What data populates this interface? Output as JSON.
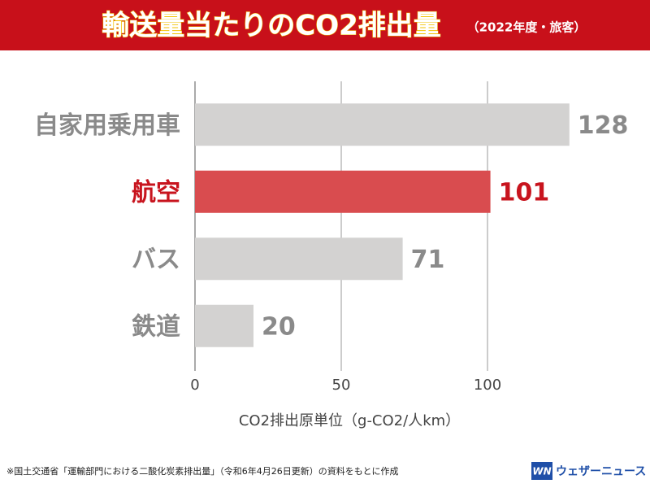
{
  "chart_data": {
    "type": "hbar",
    "title": "輸送量当たりのCO2排出量",
    "subtitle": "（2022年度・旅客）",
    "categories": [
      "自家用乗用車",
      "航空",
      "バス",
      "鉄道"
    ],
    "values": [
      128,
      101,
      71,
      20
    ],
    "colors": [
      "#d3d2d1",
      "#d94c4f",
      "#d3d2d1",
      "#d3d2d1"
    ],
    "label_colors": [
      "#8a8a8a",
      "#c8141e",
      "#8a8a8a",
      "#8a8a8a"
    ],
    "xlim": [
      0,
      150
    ],
    "xticks": [
      0,
      50,
      100
    ],
    "grid": true,
    "xlabel": "CO2排出原単位（g-CO2/人km）"
  },
  "footnote": "※国土交通省「運輸部門における二酸化炭素排出量」（令和6年4月26日更新）の資料をもとに作成",
  "logo": {
    "mark": "WN",
    "text": "ウェザーニュース"
  }
}
